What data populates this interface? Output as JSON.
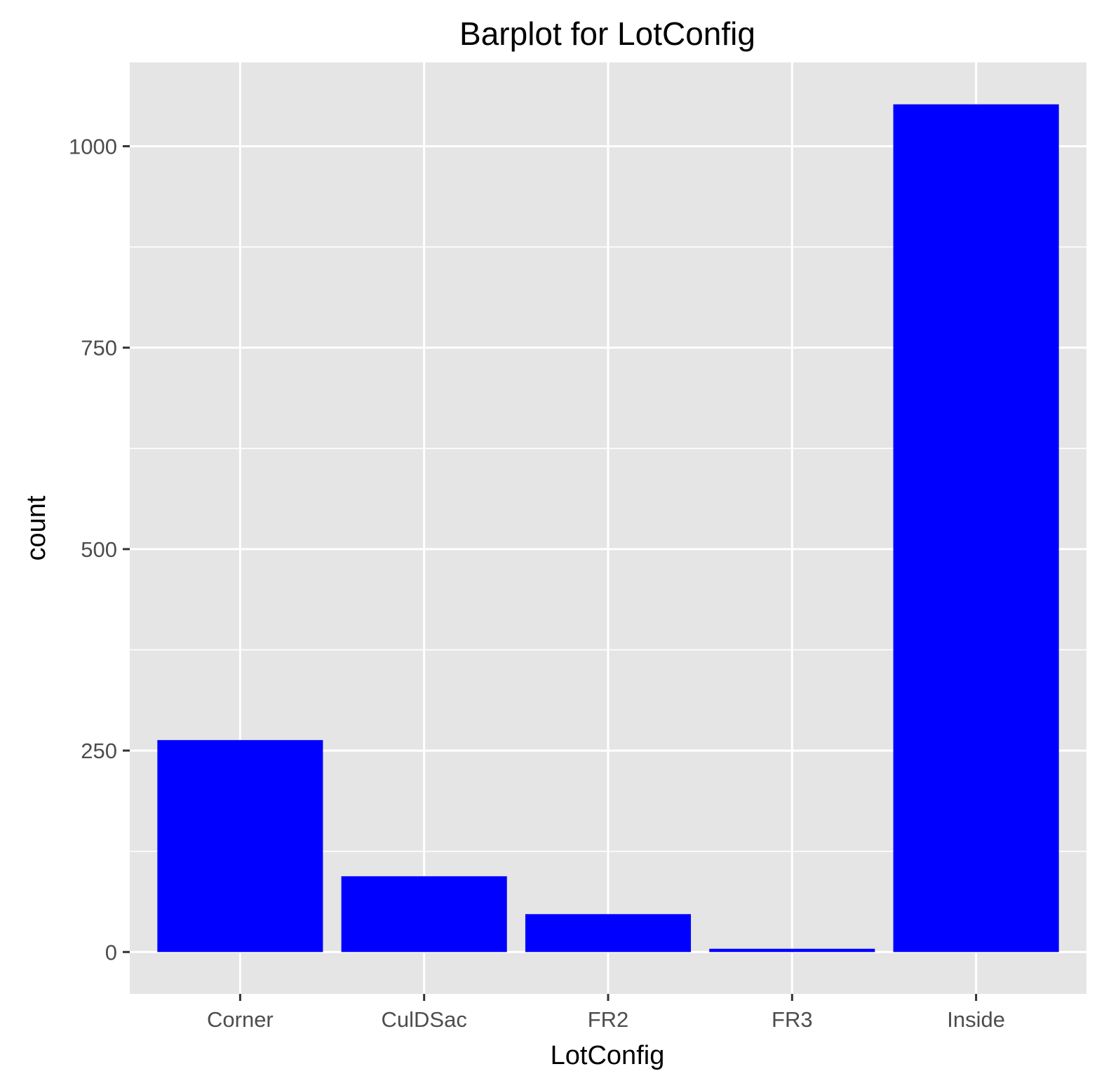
{
  "chart_data": {
    "type": "bar",
    "title": "Barplot for LotConfig",
    "xlabel": "LotConfig",
    "ylabel": "count",
    "categories": [
      "Corner",
      "CulDSac",
      "FR2",
      "FR3",
      "Inside"
    ],
    "values": [
      263,
      94,
      47,
      4,
      1052
    ],
    "ylim": [
      -52,
      1104
    ],
    "yticks": [
      0,
      250,
      500,
      750,
      1000
    ],
    "ytick_labels": [
      "0",
      "250",
      "500",
      "750",
      "1000"
    ],
    "grid": true,
    "legend": "none",
    "colors": {
      "bar": "#0000ff",
      "panel_background": "#e5e5e5",
      "grid": "#ffffff",
      "tick_text": "#4d4d4d"
    }
  }
}
